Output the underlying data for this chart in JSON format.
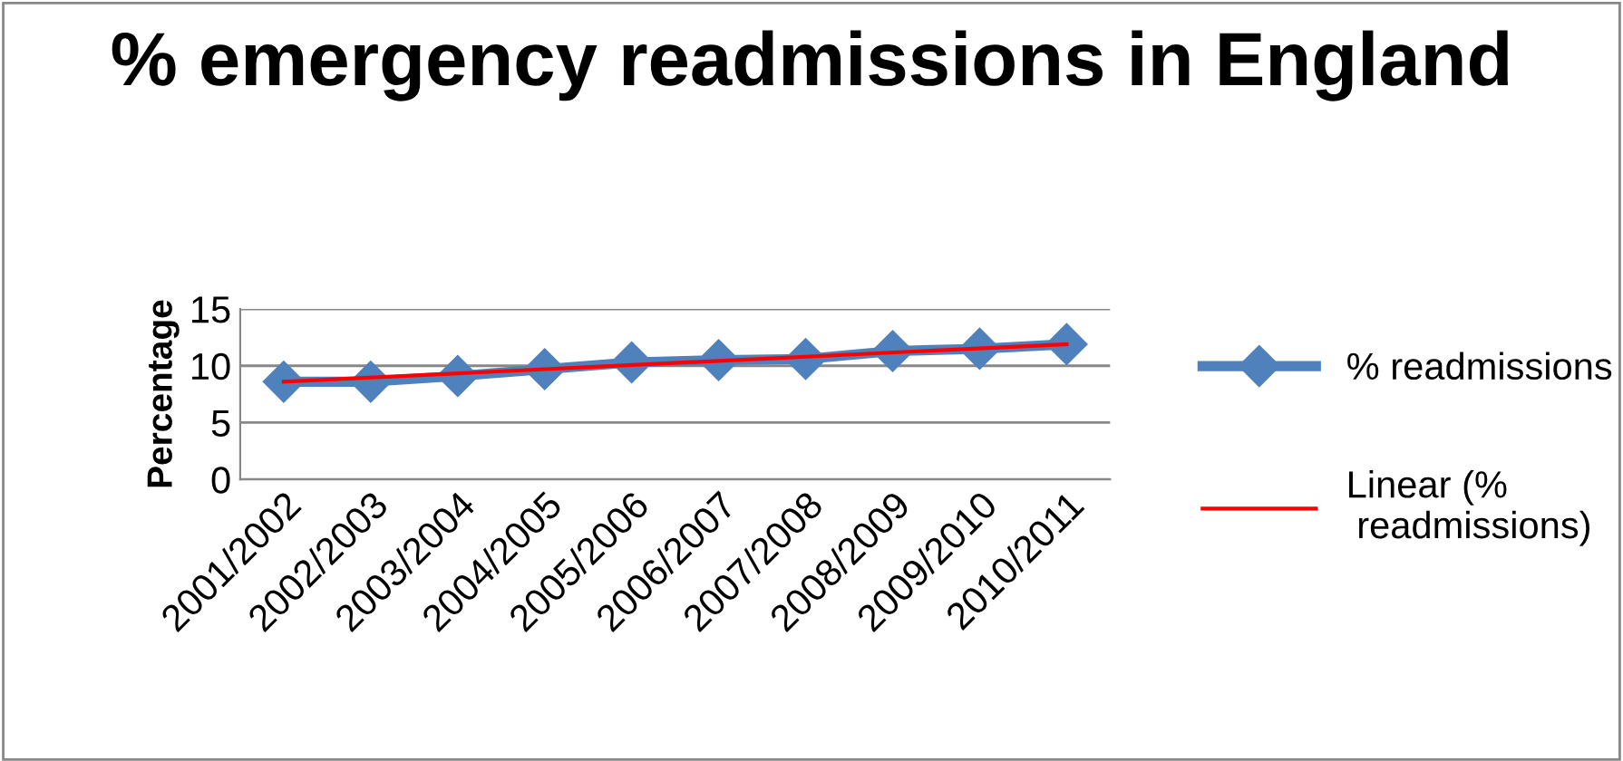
{
  "chart_data": {
    "type": "line",
    "title": "% emergency readmissions in England",
    "ylabel": "Percentage",
    "categories": [
      "2001/2002",
      "2002/2003",
      "2003/2004",
      "2004/2005",
      "2005/2006",
      "2006/2007",
      "2007/2008",
      "2008/2009",
      "2009/2010",
      "2010/2011"
    ],
    "series": [
      {
        "name": "% readmissions",
        "color": "#4f81bd",
        "marker": "diamond",
        "values": [
          8.6,
          8.6,
          9.1,
          9.7,
          10.3,
          10.5,
          10.6,
          11.3,
          11.5,
          11.9
        ]
      },
      {
        "name": "Linear (% readmissions)",
        "type": "line",
        "color": "#ff0000",
        "marker": "none",
        "x": [
          "2001/2002",
          "2010/2011"
        ],
        "values": [
          8.6,
          11.9
        ]
      }
    ],
    "ylim": [
      0,
      15
    ],
    "yticks": [
      0,
      5,
      10,
      15
    ],
    "grid": "y",
    "legend": "right"
  }
}
